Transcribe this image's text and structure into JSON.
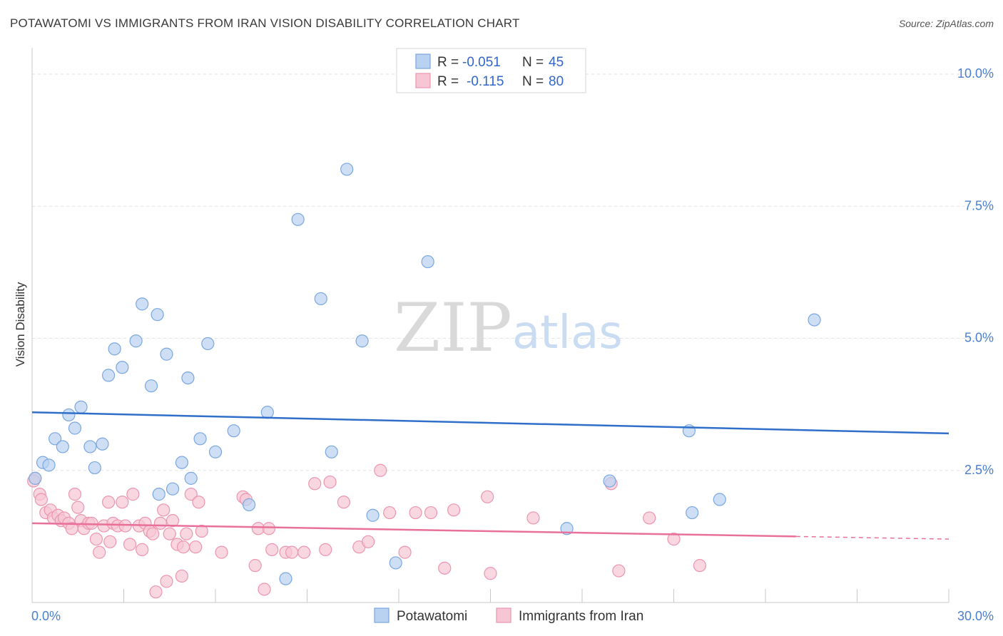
{
  "title": "POTAWATOMI VS IMMIGRANTS FROM IRAN VISION DISABILITY CORRELATION CHART",
  "source": "Source: ZipAtlas.com",
  "watermark": {
    "zip": "ZIP",
    "atlas": "atlas"
  },
  "legend_top": {
    "rows": [
      {
        "r_label": "R =",
        "r_value": "-0.051",
        "n_label": "N =",
        "n_value": "45"
      },
      {
        "r_label": "R =",
        "r_value": "-0.115",
        "n_label": "N =",
        "n_value": "80"
      }
    ]
  },
  "legend_bottom": [
    "Potawatomi",
    "Immigrants from Iran"
  ],
  "colors": {
    "blue_fill": "#b9d2f1",
    "blue_stroke": "#7aa7e0",
    "blue_line": "#2f6fca",
    "pink_fill": "#f7c6d4",
    "pink_stroke": "#ec95b0",
    "pink_line": "#e8709a"
  },
  "chart_data": {
    "type": "scatter",
    "title": "POTAWATOMI VS IMMIGRANTS FROM IRAN VISION DISABILITY CORRELATION CHART",
    "xlabel": "",
    "ylabel": "Vision Disability",
    "xlim": [
      0,
      30
    ],
    "ylim": [
      0,
      10.5
    ],
    "x_ticks": [
      "0.0%",
      "30.0%"
    ],
    "y_ticks": [
      {
        "value": 2.5,
        "label": "2.5%"
      },
      {
        "value": 5.0,
        "label": "5.0%"
      },
      {
        "value": 7.5,
        "label": "7.5%"
      },
      {
        "value": 10.0,
        "label": "10.0%"
      }
    ],
    "grid": true,
    "series": [
      {
        "name": "Potawatomi",
        "trend": {
          "x": [
            0,
            30
          ],
          "y": [
            3.6,
            3.2
          ]
        },
        "points": [
          [
            0.1,
            2.35
          ],
          [
            0.35,
            2.65
          ],
          [
            0.55,
            2.6
          ],
          [
            0.75,
            3.1
          ],
          [
            1.0,
            2.95
          ],
          [
            1.2,
            3.55
          ],
          [
            1.4,
            3.3
          ],
          [
            1.6,
            3.7
          ],
          [
            1.9,
            2.95
          ],
          [
            2.05,
            2.55
          ],
          [
            2.3,
            3.0
          ],
          [
            2.5,
            4.3
          ],
          [
            2.7,
            4.8
          ],
          [
            2.95,
            4.45
          ],
          [
            3.4,
            4.95
          ],
          [
            3.6,
            5.65
          ],
          [
            3.9,
            4.1
          ],
          [
            4.1,
            5.45
          ],
          [
            4.15,
            2.05
          ],
          [
            4.4,
            4.7
          ],
          [
            4.6,
            2.15
          ],
          [
            4.9,
            2.65
          ],
          [
            5.1,
            4.25
          ],
          [
            5.2,
            2.35
          ],
          [
            5.5,
            3.1
          ],
          [
            5.75,
            4.9
          ],
          [
            6.0,
            2.85
          ],
          [
            6.6,
            3.25
          ],
          [
            7.1,
            1.85
          ],
          [
            7.7,
            3.6
          ],
          [
            8.3,
            0.45
          ],
          [
            8.7,
            7.25
          ],
          [
            9.45,
            5.75
          ],
          [
            9.8,
            2.85
          ],
          [
            10.3,
            8.2
          ],
          [
            10.8,
            4.95
          ],
          [
            11.15,
            1.65
          ],
          [
            11.9,
            0.75
          ],
          [
            12.95,
            6.45
          ],
          [
            17.5,
            1.4
          ],
          [
            18.9,
            2.3
          ],
          [
            21.5,
            3.25
          ],
          [
            21.6,
            1.7
          ],
          [
            22.5,
            1.95
          ],
          [
            25.6,
            5.35
          ]
        ]
      },
      {
        "name": "Immigrants from Iran",
        "trend": {
          "x": [
            0,
            25
          ],
          "y": [
            1.5,
            1.25
          ],
          "dashed_to": {
            "x": 30,
            "y": 1.2
          }
        },
        "points": [
          [
            0.1,
            2.35
          ],
          [
            0.25,
            2.05
          ],
          [
            0.3,
            1.95
          ],
          [
            0.45,
            1.7
          ],
          [
            0.6,
            1.75
          ],
          [
            0.7,
            1.6
          ],
          [
            0.85,
            1.65
          ],
          [
            0.95,
            1.55
          ],
          [
            1.05,
            1.6
          ],
          [
            1.2,
            1.5
          ],
          [
            1.3,
            1.4
          ],
          [
            1.4,
            2.05
          ],
          [
            1.5,
            1.8
          ],
          [
            1.6,
            1.55
          ],
          [
            1.7,
            1.4
          ],
          [
            1.85,
            1.5
          ],
          [
            1.95,
            1.5
          ],
          [
            2.1,
            1.2
          ],
          [
            2.2,
            0.95
          ],
          [
            2.35,
            1.45
          ],
          [
            2.5,
            1.9
          ],
          [
            2.55,
            1.15
          ],
          [
            2.65,
            1.5
          ],
          [
            2.8,
            1.45
          ],
          [
            2.95,
            1.9
          ],
          [
            3.05,
            1.45
          ],
          [
            3.2,
            1.1
          ],
          [
            3.3,
            2.05
          ],
          [
            3.5,
            1.45
          ],
          [
            3.6,
            1.0
          ],
          [
            3.7,
            1.5
          ],
          [
            3.85,
            1.35
          ],
          [
            3.95,
            1.3
          ],
          [
            4.05,
            0.2
          ],
          [
            4.2,
            1.5
          ],
          [
            4.3,
            1.75
          ],
          [
            4.4,
            0.4
          ],
          [
            4.5,
            1.3
          ],
          [
            4.6,
            1.55
          ],
          [
            4.75,
            1.1
          ],
          [
            4.9,
            0.5
          ],
          [
            4.95,
            1.05
          ],
          [
            5.05,
            1.3
          ],
          [
            5.2,
            2.05
          ],
          [
            5.35,
            1.05
          ],
          [
            5.45,
            1.9
          ],
          [
            5.55,
            1.35
          ],
          [
            6.2,
            0.95
          ],
          [
            6.9,
            2.0
          ],
          [
            7.0,
            1.95
          ],
          [
            7.3,
            0.7
          ],
          [
            7.4,
            1.4
          ],
          [
            7.6,
            0.25
          ],
          [
            7.75,
            1.4
          ],
          [
            7.85,
            1.0
          ],
          [
            8.3,
            0.95
          ],
          [
            8.5,
            0.95
          ],
          [
            8.9,
            0.95
          ],
          [
            9.25,
            2.25
          ],
          [
            9.6,
            1.0
          ],
          [
            9.75,
            2.28
          ],
          [
            10.2,
            1.9
          ],
          [
            10.7,
            1.05
          ],
          [
            11.0,
            1.15
          ],
          [
            11.4,
            2.5
          ],
          [
            11.7,
            1.7
          ],
          [
            12.2,
            0.95
          ],
          [
            12.55,
            1.7
          ],
          [
            13.05,
            1.7
          ],
          [
            13.5,
            0.65
          ],
          [
            13.8,
            1.75
          ],
          [
            14.9,
            2.0
          ],
          [
            15.0,
            0.55
          ],
          [
            16.4,
            1.6
          ],
          [
            18.95,
            2.25
          ],
          [
            19.2,
            0.6
          ],
          [
            20.2,
            1.6
          ],
          [
            21.0,
            1.2
          ],
          [
            21.85,
            0.7
          ],
          [
            0.05,
            2.3
          ]
        ]
      }
    ]
  }
}
